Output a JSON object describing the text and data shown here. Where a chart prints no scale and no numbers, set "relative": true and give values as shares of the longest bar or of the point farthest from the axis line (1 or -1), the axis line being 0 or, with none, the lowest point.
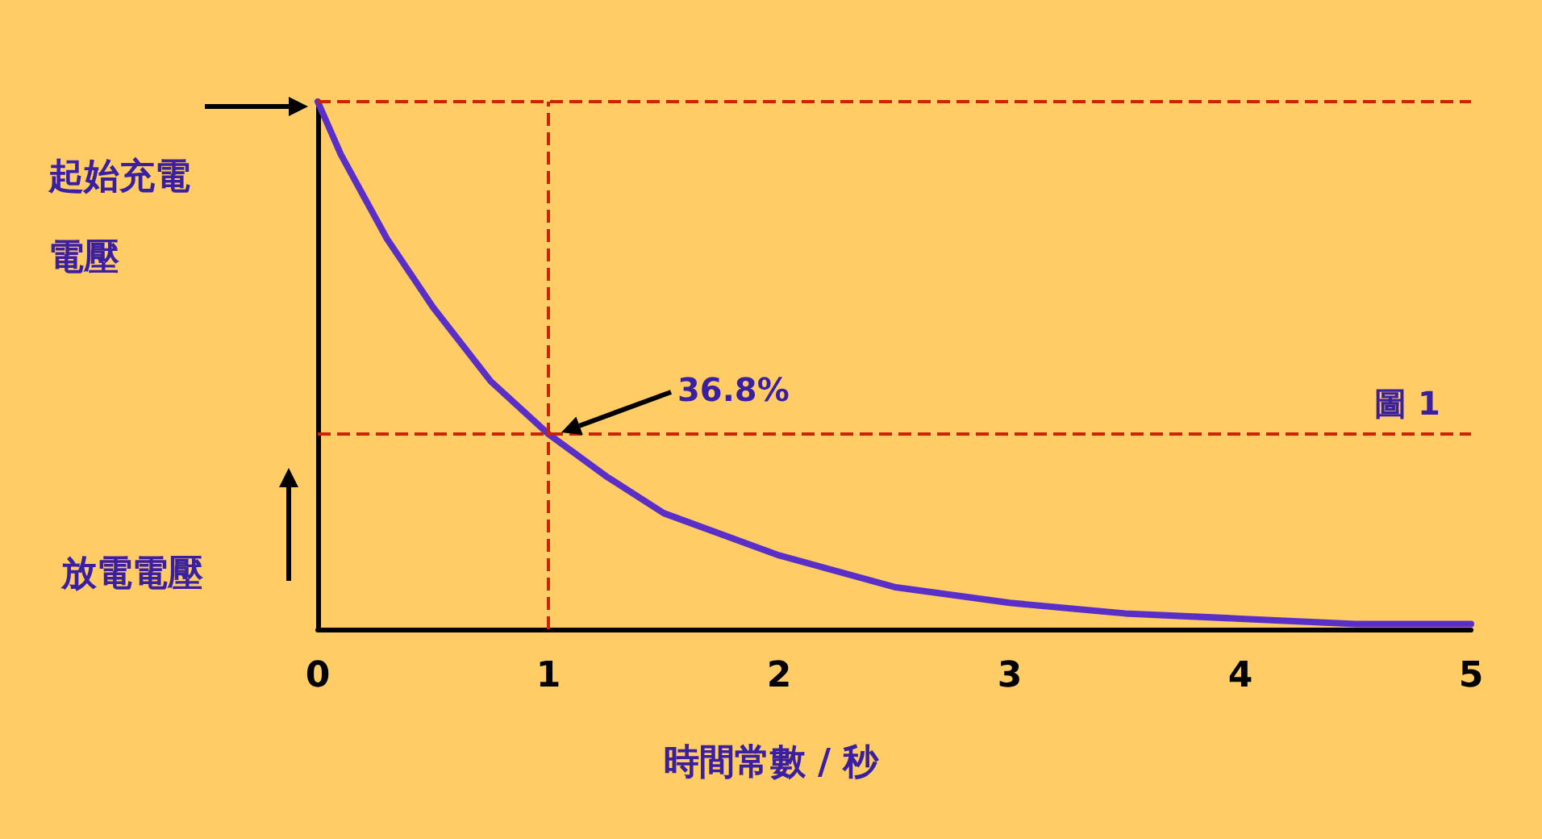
{
  "chart_data": {
    "type": "line",
    "relative": true,
    "xlabel": "時間常數 / 秒",
    "ylabel": "放電電壓",
    "x": [
      0,
      0.1,
      0.2,
      0.3,
      0.5,
      0.75,
      1,
      1.25,
      1.5,
      2,
      2.5,
      3,
      3.5,
      4,
      4.5,
      5
    ],
    "values": [
      1,
      0.9,
      0.82,
      0.74,
      0.61,
      0.47,
      0.37,
      0.29,
      0.22,
      0.14,
      0.08,
      0.05,
      0.03,
      0.02,
      0.01,
      0.01
    ],
    "color": "#5a2fc8",
    "xlim": [
      0,
      5
    ],
    "xticks": [
      0,
      1,
      2,
      3,
      4,
      5
    ],
    "marker": "none",
    "line_style": "solid",
    "ref_lines": [
      {
        "axis": "y",
        "value": 1,
        "color": "#cc2200",
        "line_style": "dashed"
      },
      {
        "axis": "y",
        "value": 0.368,
        "color": "#cc2200",
        "line_style": "dashed"
      },
      {
        "axis": "x",
        "value": 1,
        "color": "#cc2200",
        "line_style": "dashed"
      }
    ],
    "annotations": [
      "起始充電電壓",
      "36.8%",
      "圖 1"
    ]
  }
}
